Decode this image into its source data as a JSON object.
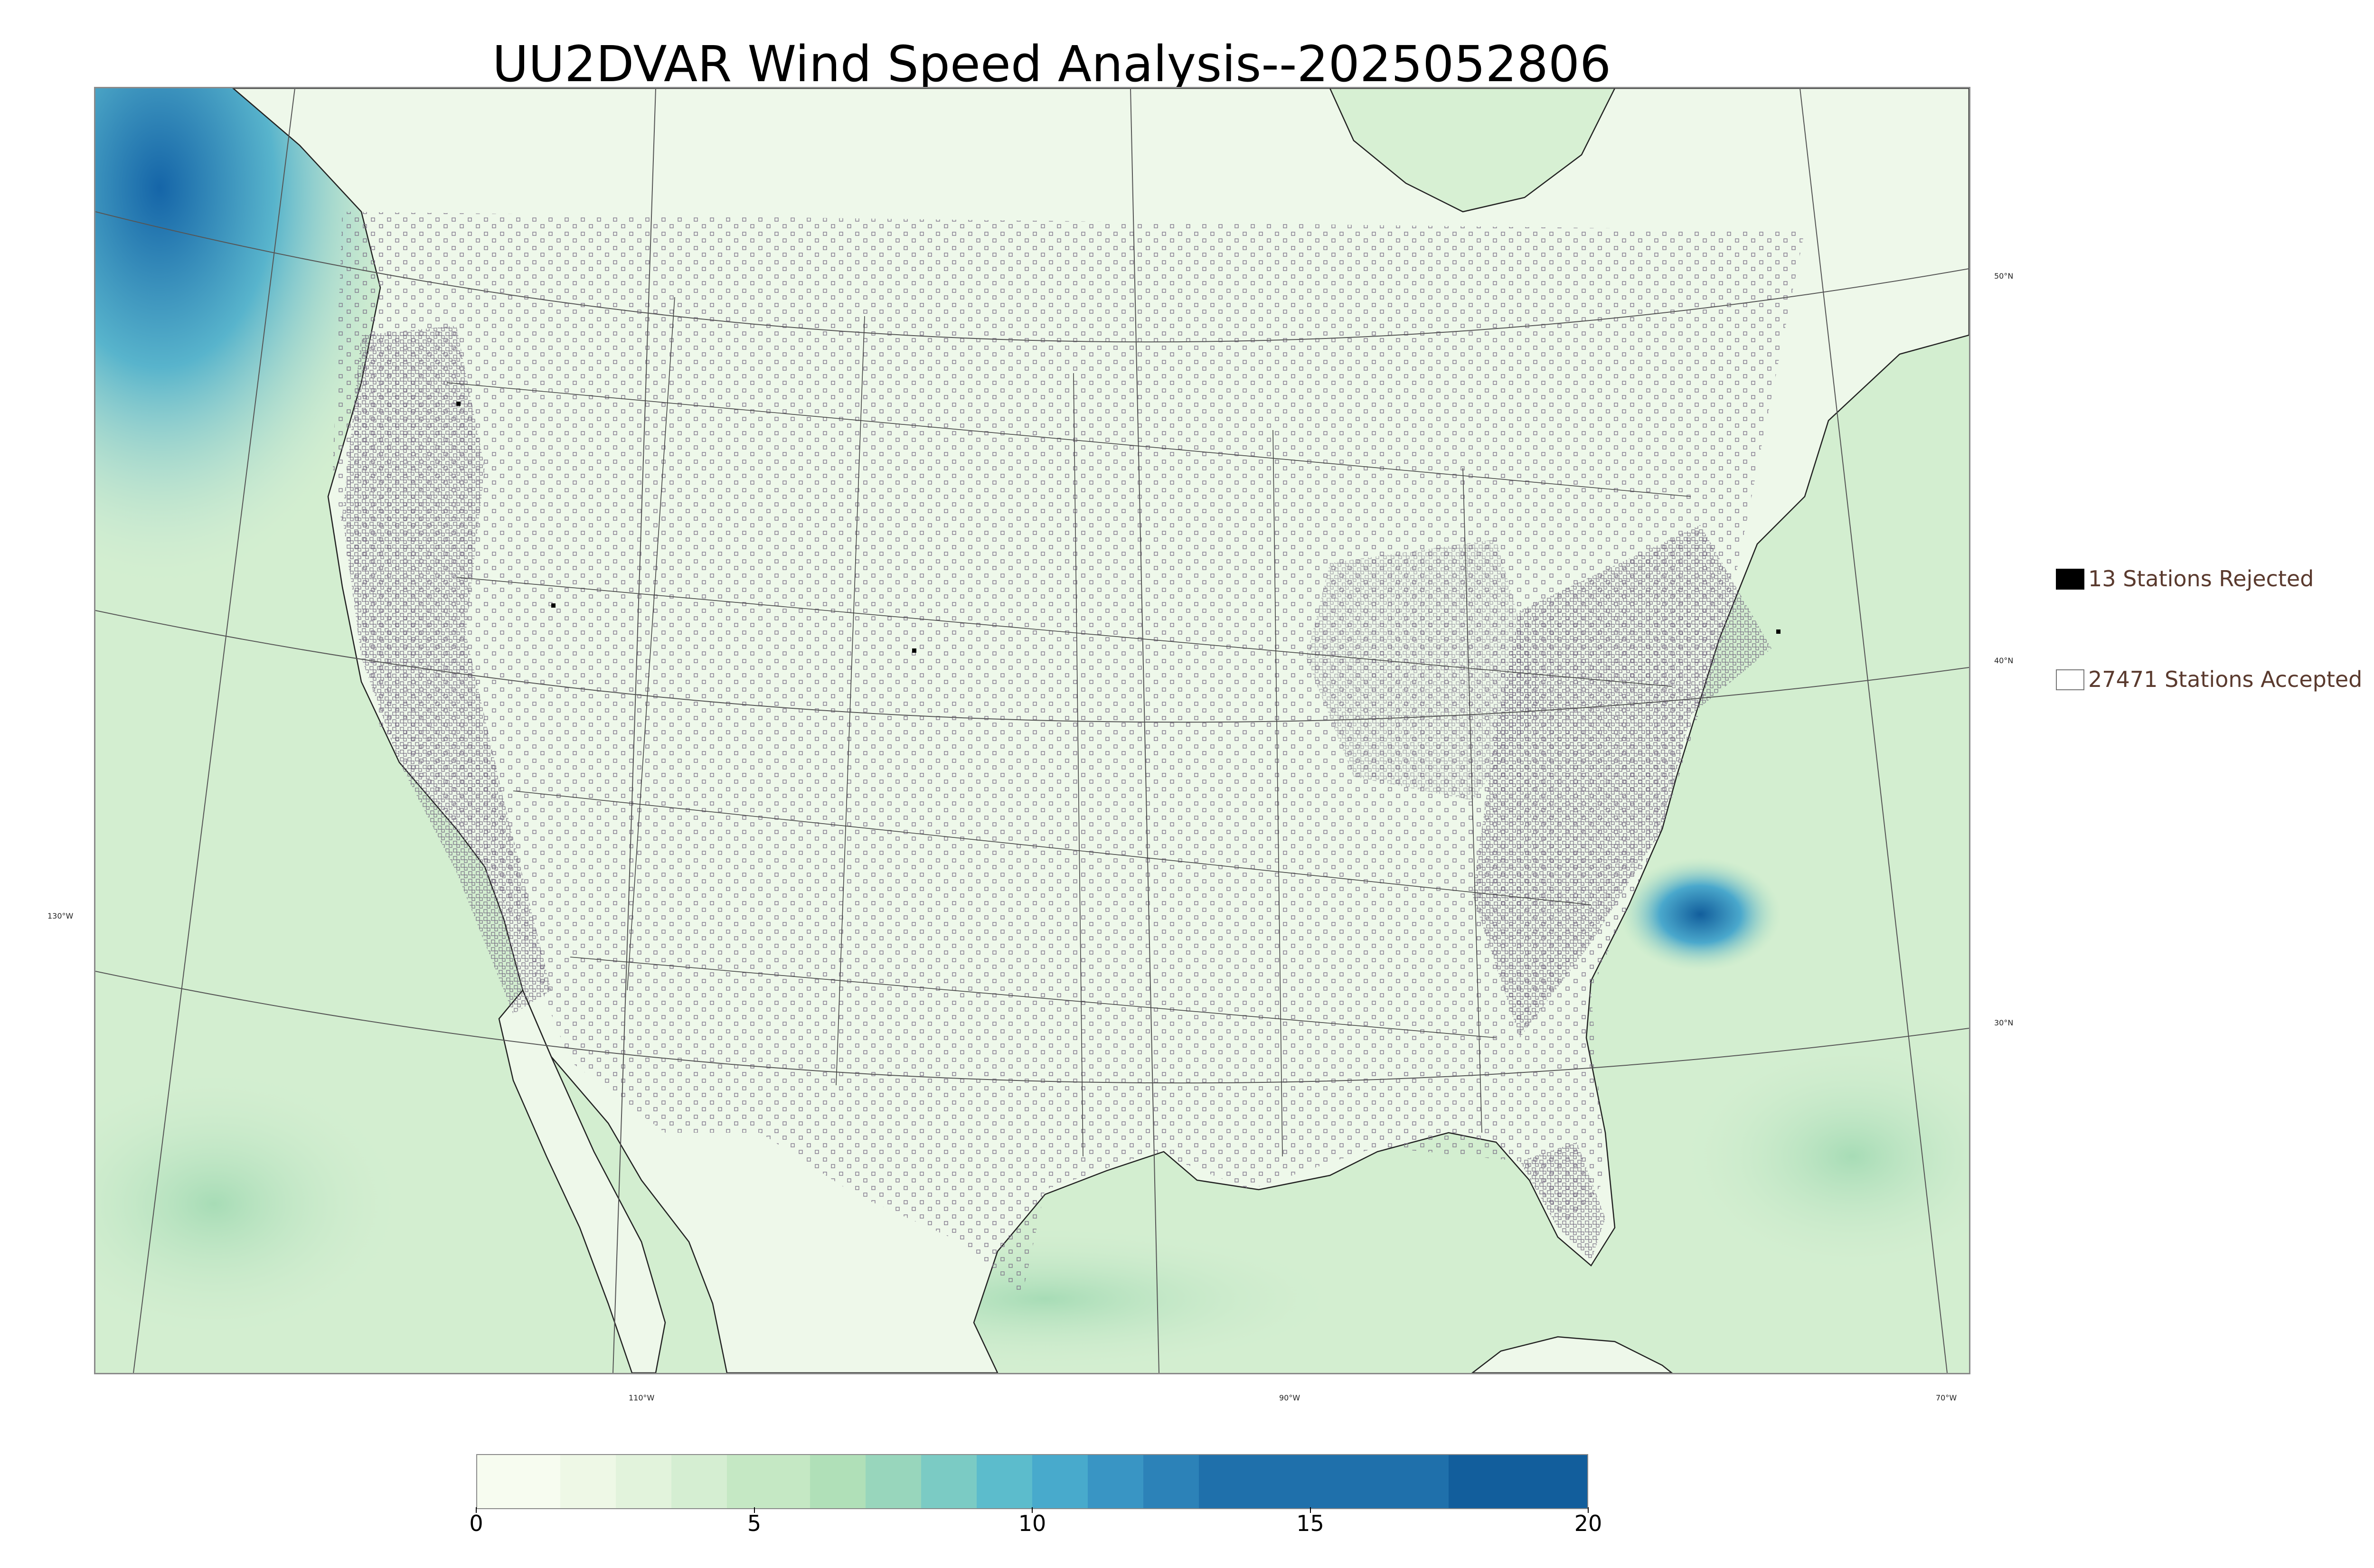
{
  "title": "UU2DVAR Wind Speed Analysis--2025052806",
  "map": {
    "region": "Continental United States",
    "variable": "Wind Speed",
    "land_color": "#eef8ea",
    "ocean_color": "#cfeccf",
    "strong_wind_color": "#1565a8",
    "boundary_color": "#222222",
    "graticule_color": "#555555",
    "station_marker_color": "#7a6f86",
    "graticule_labels": {
      "lat_50": "50°N",
      "lat_40": "40°N",
      "lat_30": "30°N",
      "lon_130": "130°W",
      "lon_110": "110°W",
      "lon_90": "90°W",
      "lon_70": "70°W"
    }
  },
  "legend": {
    "rejected": {
      "label": "13 Stations Rejected",
      "count": 13,
      "marker": "filled-black-square",
      "text_color": "#5a3a2e"
    },
    "accepted": {
      "label": "27471 Stations Accepted",
      "count": 27471,
      "marker": "open-square",
      "text_color": "#5a3a2e"
    }
  },
  "colorbar": {
    "min": 0,
    "max": 20,
    "tick_labels": [
      "0",
      "5",
      "10",
      "15",
      "20"
    ],
    "tick_values": [
      0,
      5,
      10,
      15,
      20
    ],
    "colors": [
      "#f7fcf0",
      "#eef8e6",
      "#e2f3dc",
      "#d5eed2",
      "#c5e8c4",
      "#b0e0b8",
      "#98d6bc",
      "#7bcbc4",
      "#5cbccc",
      "#48aacc",
      "#3995c4",
      "#2c82b8",
      "#1f70ab",
      "#125e9c"
    ],
    "boundaries": [
      0,
      1.5,
      2.5,
      3.5,
      4.5,
      6,
      7,
      8,
      9,
      10,
      11,
      12,
      13,
      17.5,
      20
    ]
  }
}
